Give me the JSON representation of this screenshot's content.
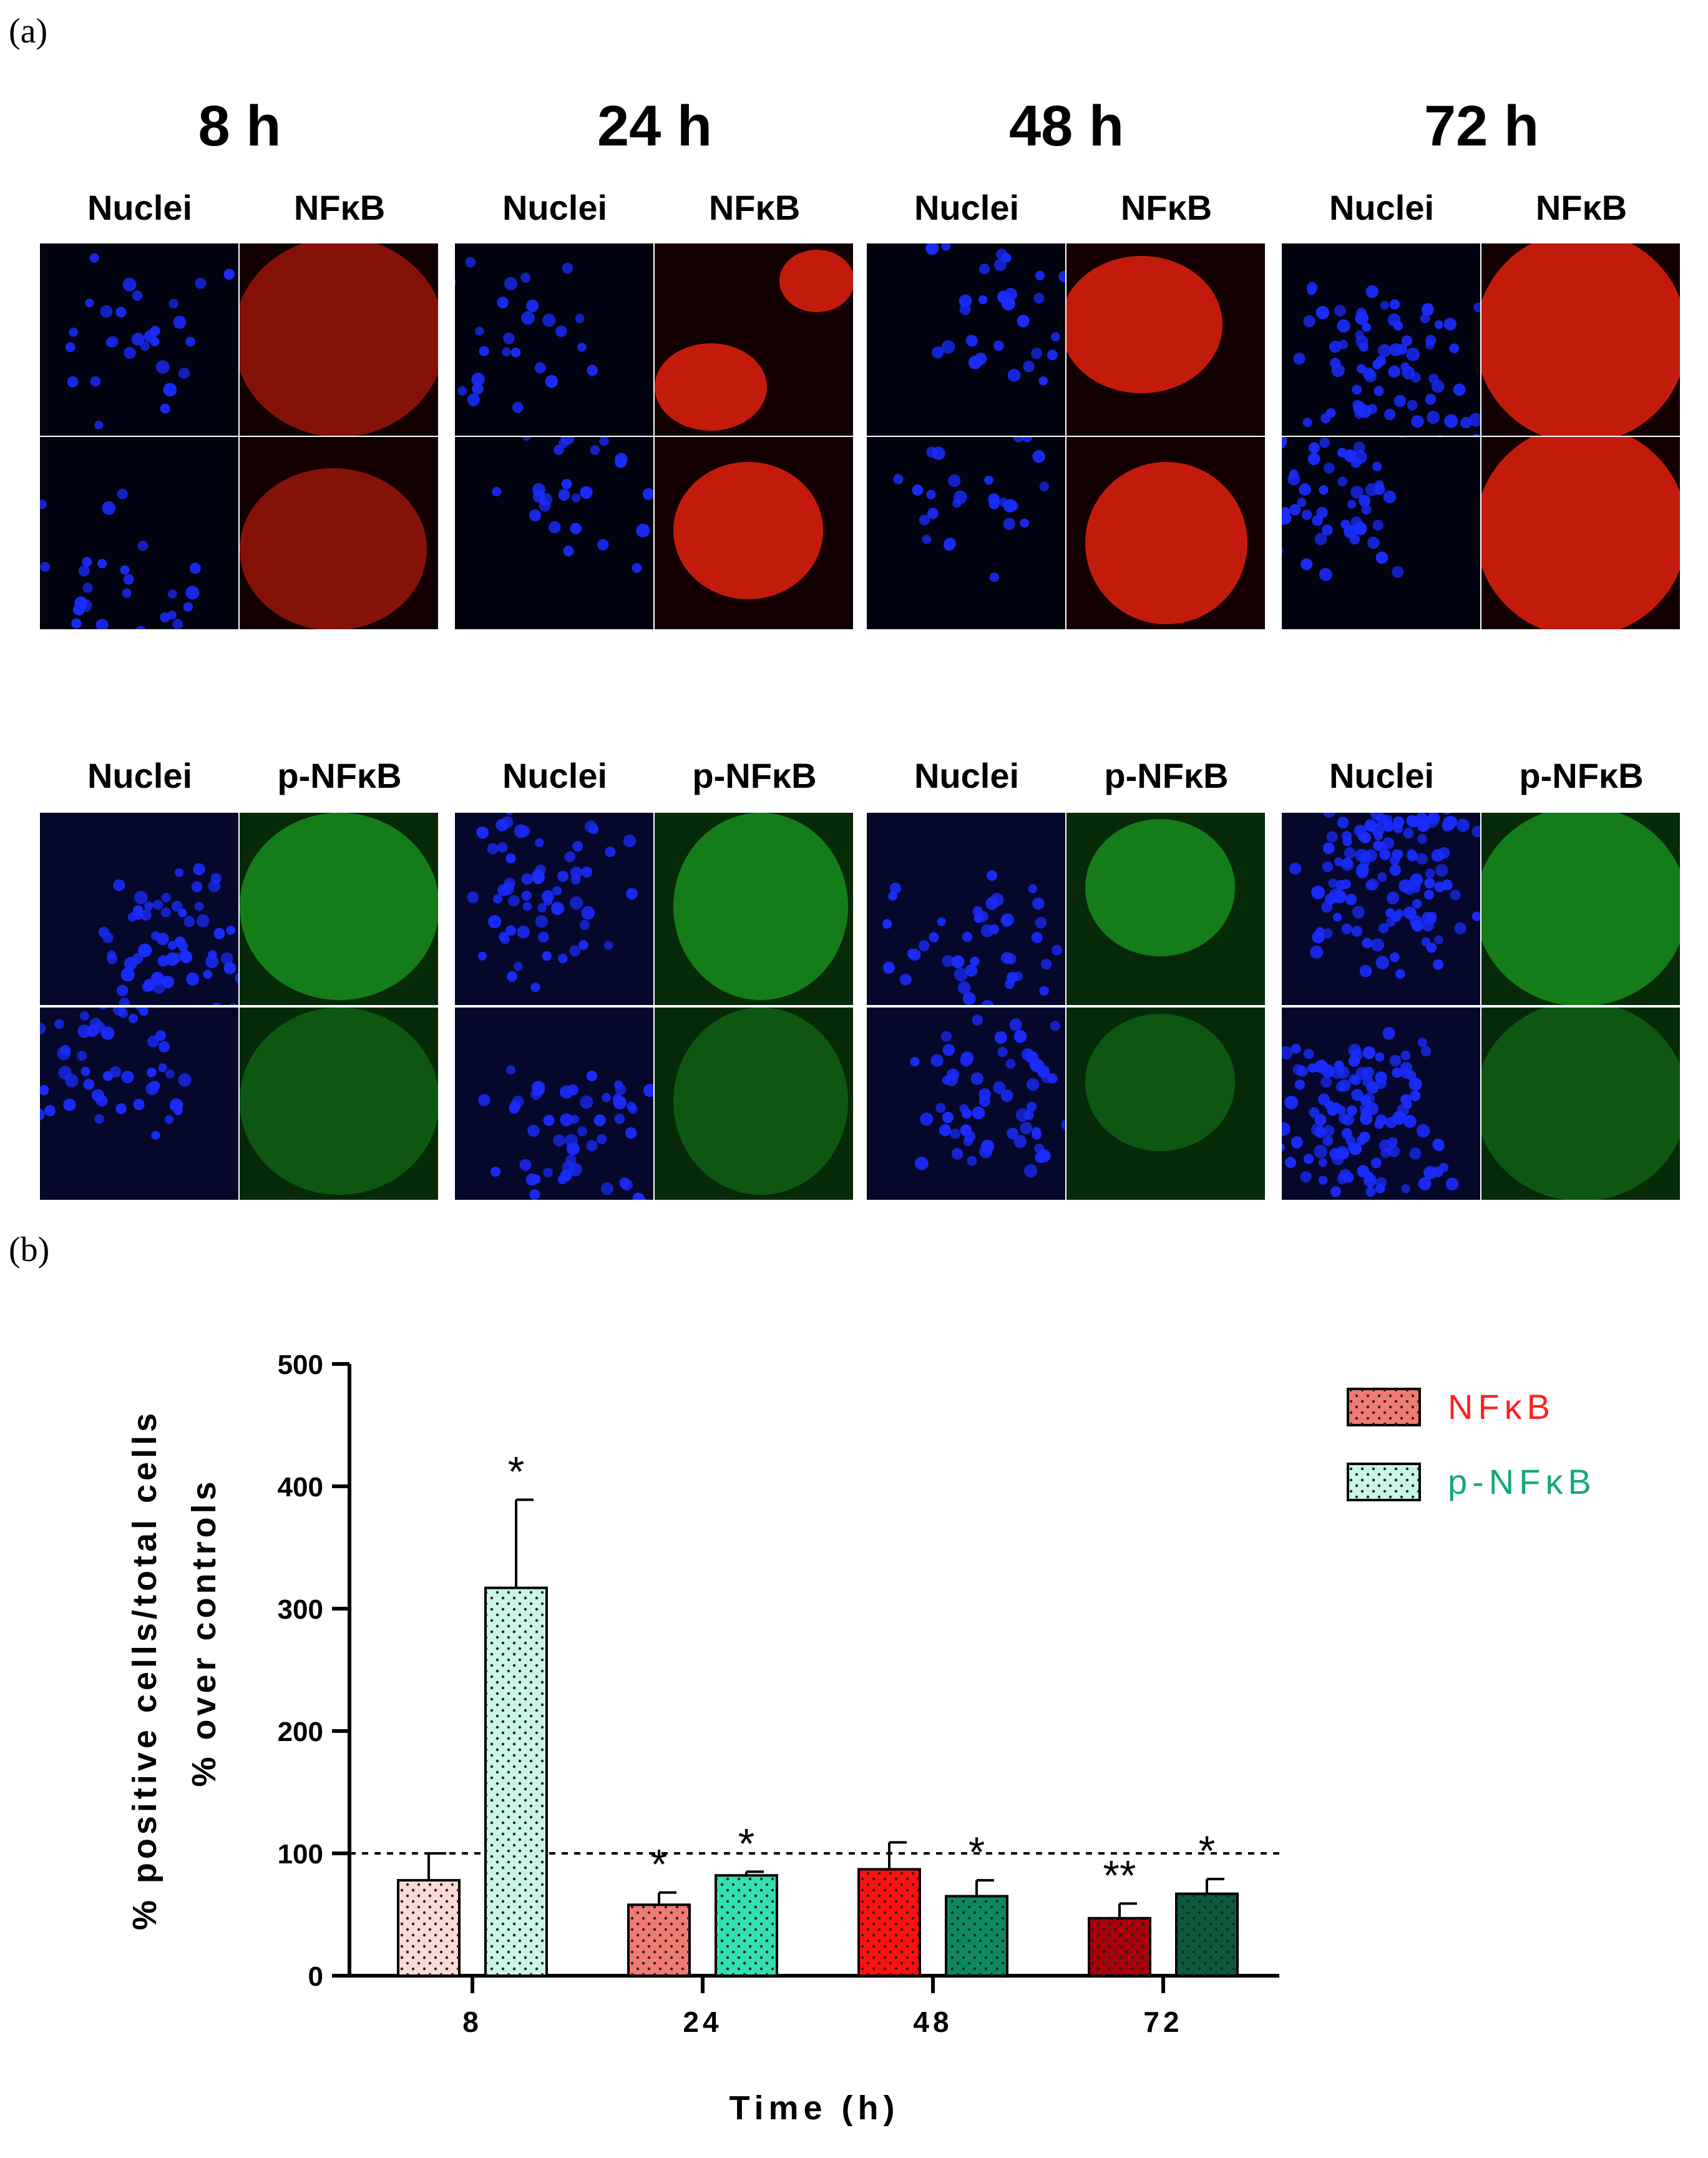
{
  "figure": {
    "panel_a_label": "(a)",
    "panel_b_label": "(b)",
    "time_points": [
      "8 h",
      "24 h",
      "48 h",
      "72 h"
    ],
    "top_channels": [
      "Nuclei",
      "NFκB"
    ],
    "bottom_channels": [
      "Nuclei",
      "p-NFκB"
    ]
  },
  "colors": {
    "nuclei_blue": "#1a2cff",
    "nfkb_red": "#e0200e",
    "pnfkb_green": "#22c02a",
    "nfkb_series": [
      "#fbd9d6",
      "#f17a72",
      "#ff1010",
      "#a8000a"
    ],
    "pnfkb_series": [
      "#c9f5e6",
      "#33e0b0",
      "#0c8a5e",
      "#0a5a3c"
    ],
    "legend_nfkb_text": "#ff2020",
    "legend_pnfkb_text": "#14a878"
  },
  "chart_data": {
    "type": "bar",
    "categories": [
      "8",
      "24",
      "48",
      "72"
    ],
    "series": [
      {
        "name": "NFκB",
        "values": [
          78,
          58,
          87,
          47
        ],
        "errors": [
          22,
          10,
          22,
          12
        ],
        "annotations": [
          "",
          "*",
          "",
          "**"
        ]
      },
      {
        "name": "p-NFκB",
        "values": [
          317,
          82,
          65,
          67
        ],
        "errors": [
          72,
          3,
          13,
          12
        ],
        "annotations": [
          "*",
          "*",
          "*",
          "*"
        ]
      }
    ],
    "ylabel_line1": "% positive cells/total cells",
    "ylabel_line2": "% over controls",
    "xlabel": "Time (h)",
    "ylim": [
      0,
      500
    ],
    "yticks": [
      0,
      100,
      200,
      300,
      400,
      500
    ],
    "reference_line": 100,
    "legend_position": "top-right",
    "grid": false
  }
}
